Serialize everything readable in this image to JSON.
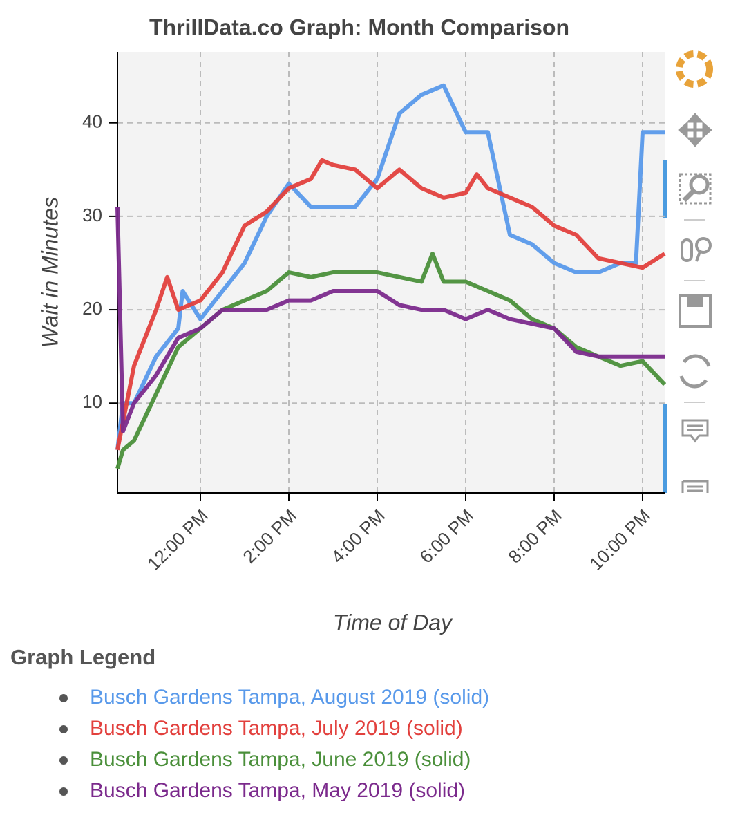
{
  "chart_data": {
    "type": "line",
    "title": "ThrillData.co Graph: Month Comparison",
    "x_label": "Time of Day",
    "y_label": "Wait in Minutes",
    "xlim": [
      10.125,
      22.5
    ],
    "ylim": [
      0.4,
      47.6
    ],
    "xticks": [
      {
        "value": 12,
        "label": "12:00 PM"
      },
      {
        "value": 14,
        "label": "2:00 PM"
      },
      {
        "value": 16,
        "label": "4:00 PM"
      },
      {
        "value": 18,
        "label": "6:00 PM"
      },
      {
        "value": 20,
        "label": "8:00 PM"
      },
      {
        "value": 22,
        "label": "10:00 PM"
      }
    ],
    "yticks": [
      10,
      20,
      30,
      40
    ],
    "grid": true,
    "legend_title": "Graph Legend",
    "series": [
      {
        "name": "Busch Gardens Tampa, August 2019 (solid)",
        "color": "#5899ea",
        "x": [
          10.125,
          10.25,
          10.5,
          11,
          11.5,
          11.6,
          12,
          12.5,
          13,
          13.5,
          14,
          14.5,
          15,
          15.5,
          16,
          16.5,
          17,
          17.5,
          18,
          18.5,
          19,
          19.5,
          20,
          20.5,
          21,
          21.5,
          21.85,
          22,
          22.5
        ],
        "values": [
          5,
          10,
          10,
          15,
          18,
          22,
          19,
          22,
          25,
          30,
          33.5,
          31,
          31,
          31,
          34,
          41,
          43,
          44,
          39,
          39,
          28,
          27,
          25,
          24,
          24,
          25,
          25,
          39,
          39
        ]
      },
      {
        "name": "Busch Gardens Tampa, July 2019 (solid)",
        "color": "#e2403d",
        "x": [
          10.125,
          10.25,
          10.5,
          11,
          11.25,
          11.5,
          12,
          12.5,
          13,
          13.5,
          14,
          14.5,
          14.75,
          15,
          15.5,
          16,
          16.5,
          17,
          17.5,
          18,
          18.25,
          18.5,
          19,
          19.5,
          20,
          20.5,
          21,
          21.5,
          22,
          22.5
        ],
        "values": [
          5,
          8,
          14,
          20,
          23.5,
          20,
          21,
          24,
          29,
          30.5,
          33,
          34,
          36,
          35.5,
          35,
          33,
          35,
          33,
          32,
          32.5,
          34.5,
          33,
          32,
          31,
          29,
          28,
          25.5,
          25,
          24.5,
          26
        ]
      },
      {
        "name": "Busch Gardens Tampa, June 2019 (solid)",
        "color": "#4a8f3a",
        "x": [
          10.125,
          10.25,
          10.5,
          11,
          11.5,
          12,
          12.5,
          13,
          13.5,
          14,
          14.5,
          15,
          15.5,
          16,
          16.5,
          17,
          17.25,
          17.5,
          18,
          18.5,
          19,
          19.5,
          20,
          20.5,
          21,
          21.5,
          22,
          22.5
        ],
        "values": [
          3,
          5,
          6,
          11,
          16,
          18,
          20,
          21,
          22,
          24,
          23.5,
          24,
          24,
          24,
          23.5,
          23,
          26,
          23,
          23,
          22,
          21,
          19,
          18,
          16,
          15,
          14,
          14.5,
          12
        ]
      },
      {
        "name": "Busch Gardens Tampa, May 2019 (solid)",
        "color": "#7b2a8c",
        "x": [
          10.125,
          10.25,
          10.5,
          11,
          11.5,
          12,
          12.5,
          13,
          13.5,
          14,
          14.5,
          15,
          15.5,
          16,
          16.5,
          17,
          17.5,
          18,
          18.5,
          19,
          19.5,
          20,
          20.5,
          21,
          21.5,
          22,
          22.5
        ],
        "values": [
          31,
          7,
          10,
          13,
          17,
          18,
          20,
          20,
          20,
          21,
          21,
          22,
          22,
          22,
          20.5,
          20,
          20,
          19,
          20,
          19,
          18.5,
          18,
          15.5,
          15,
          15,
          15,
          15
        ]
      }
    ]
  }
}
